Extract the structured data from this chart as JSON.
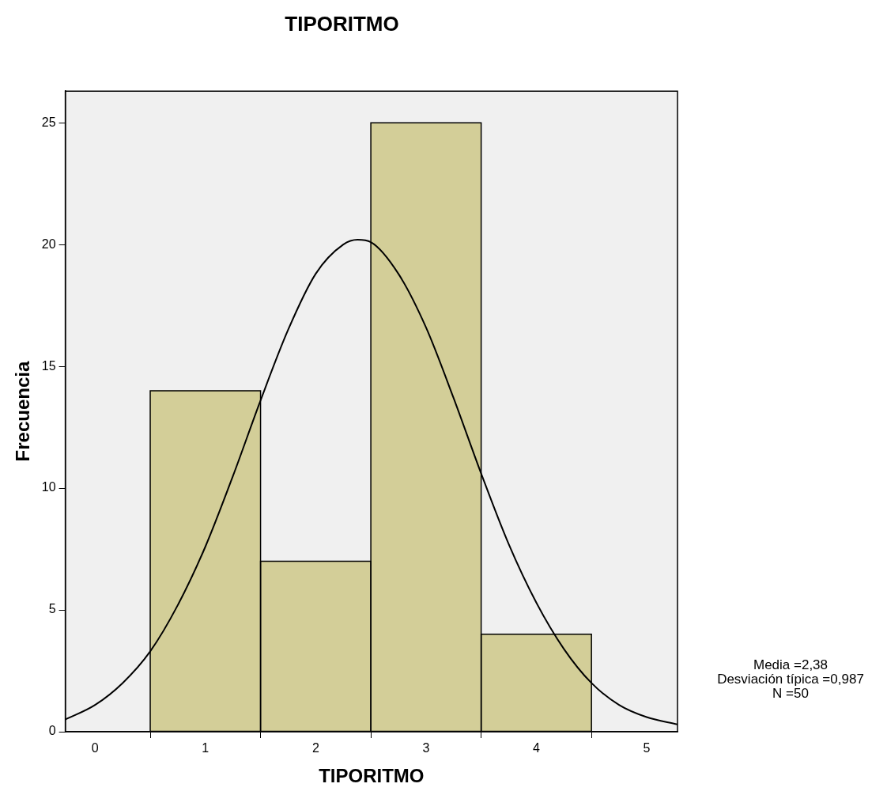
{
  "chart_data": {
    "type": "histogram",
    "title": "TIPORITMO",
    "xlabel": "TIPORITMO",
    "ylabel": "Frecuencia",
    "bins": [
      0.5,
      1.5,
      2.5,
      3.5,
      4.5
    ],
    "values": [
      14,
      7,
      25,
      4
    ],
    "color": "#d3ce98",
    "series": [
      {
        "type": "line",
        "color": "#000000",
        "x": [
          -0.27,
          0,
          0.25,
          0.5,
          0.75,
          1,
          1.25,
          1.5,
          1.75,
          2,
          2.25,
          2.38,
          2.5,
          2.75,
          3,
          3.25,
          3.5,
          3.75,
          4,
          4.25,
          4.5,
          4.75,
          5,
          5.28
        ],
        "values": [
          0.5,
          1.1,
          2.0,
          3.3,
          5.2,
          7.6,
          10.5,
          13.6,
          16.5,
          18.8,
          20.0,
          20.2,
          20.1,
          18.8,
          16.6,
          13.7,
          10.6,
          7.7,
          5.3,
          3.4,
          2.0,
          1.1,
          0.6,
          0.3
        ]
      }
    ],
    "xlim": [
      -0.27,
      5.28
    ],
    "xticks": [
      0,
      1,
      2,
      3,
      4,
      5
    ],
    "ylim": [
      0,
      26.3
    ],
    "yticks": [
      0,
      5,
      10,
      15,
      20,
      25
    ],
    "grid": false,
    "legend": false,
    "marker": "none",
    "line_style": "solid",
    "annotations": [
      "Media =2,38",
      "Desviación típica =0,987",
      "N =50"
    ]
  }
}
